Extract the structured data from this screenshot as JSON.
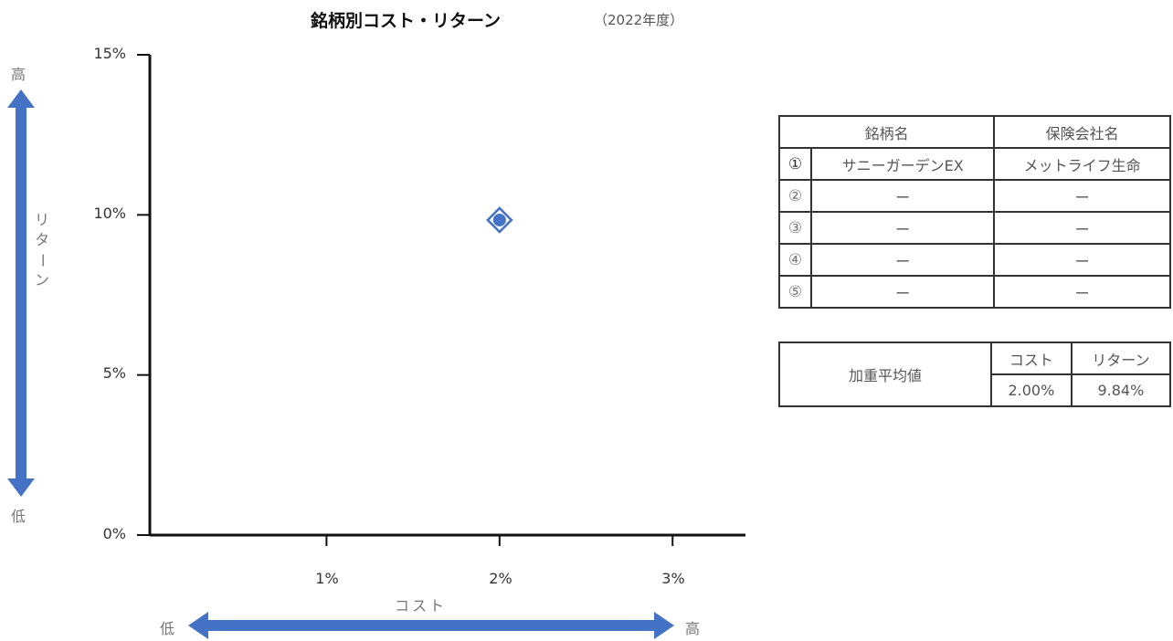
{
  "chart_data": {
    "type": "scatter",
    "title": "銘柄別コスト・リターン",
    "subtitle": "（2022年度）",
    "xlabel": "コスト",
    "ylabel": "リターン",
    "xlim": [
      0,
      0.034
    ],
    "ylim": [
      0,
      0.15
    ],
    "x_ticks": [
      {
        "value": 0.01,
        "label": "1%"
      },
      {
        "value": 0.02,
        "label": "2%"
      },
      {
        "value": 0.03,
        "label": "3%"
      }
    ],
    "y_ticks": [
      {
        "value": 0,
        "label": "0%"
      },
      {
        "value": 0.05,
        "label": "5%"
      },
      {
        "value": 0.1,
        "label": "10%"
      },
      {
        "value": 0.15,
        "label": "15%"
      }
    ],
    "grid": false,
    "points": [
      {
        "x": 0.02,
        "y": 0.0984,
        "marker": "diamond-outline",
        "color": "#4472c4"
      },
      {
        "x": 0.02,
        "y": 0.0984,
        "marker": "circle",
        "color": "#4472c4"
      }
    ],
    "axis_arrows": {
      "x_low": "低",
      "x_high": "高",
      "y_high": "高",
      "y_low": "低",
      "color": "#4472c4"
    }
  },
  "issuer_table": {
    "headers": [
      "銘柄名",
      "保険会社名"
    ],
    "rows": [
      {
        "num": "①",
        "name": "サニーガーデンEX",
        "company": "メットライフ生命"
      },
      {
        "num": "②",
        "name": "ー",
        "company": "ー"
      },
      {
        "num": "③",
        "name": "ー",
        "company": "ー"
      },
      {
        "num": "④",
        "name": "ー",
        "company": "ー"
      },
      {
        "num": "⑤",
        "name": "ー",
        "company": "ー"
      }
    ]
  },
  "summary_table": {
    "label": "加重平均値",
    "cost_header": "コスト",
    "return_header": "リターン",
    "cost_value": "2.00%",
    "return_value": "9.84%"
  }
}
